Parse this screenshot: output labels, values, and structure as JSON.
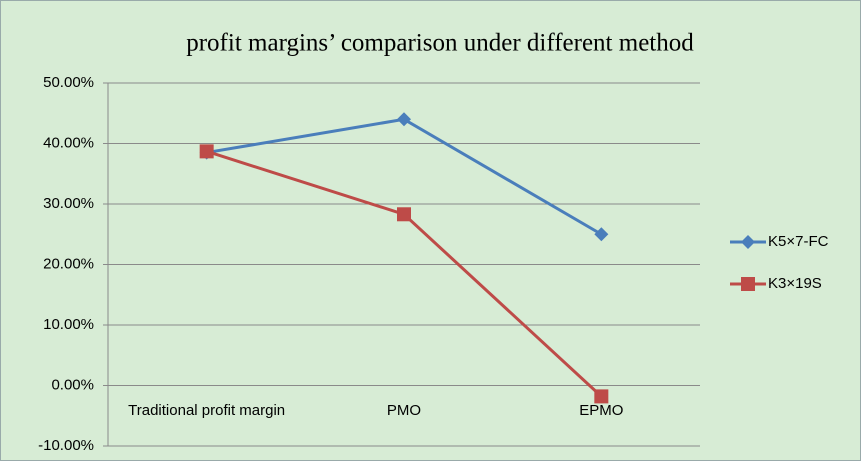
{
  "chart_data": {
    "type": "line",
    "title": "profit margins’ comparison under different method",
    "categories": [
      "Traditional profit margin",
      "PMO",
      "EPMO"
    ],
    "series": [
      {
        "name": "K5×7-FC",
        "color": "#4a7ebb",
        "marker": "diamond",
        "values": [
          38.5,
          44,
          25
        ]
      },
      {
        "name": "K3×19S",
        "color": "#be4b48",
        "marker": "square",
        "values": [
          38.7,
          28.3,
          -1.8
        ]
      }
    ],
    "ylim": [
      -10,
      50
    ],
    "yticks": [
      {
        "value": -10,
        "label": "-10.00%"
      },
      {
        "value": 0,
        "label": "0.00%"
      },
      {
        "value": 10,
        "label": "10.00%"
      },
      {
        "value": 20,
        "label": "20.00%"
      },
      {
        "value": 30,
        "label": "30.00%"
      },
      {
        "value": 40,
        "label": "40.00%"
      },
      {
        "value": 50,
        "label": "50.00%"
      }
    ],
    "grid": true,
    "legend": "right"
  }
}
